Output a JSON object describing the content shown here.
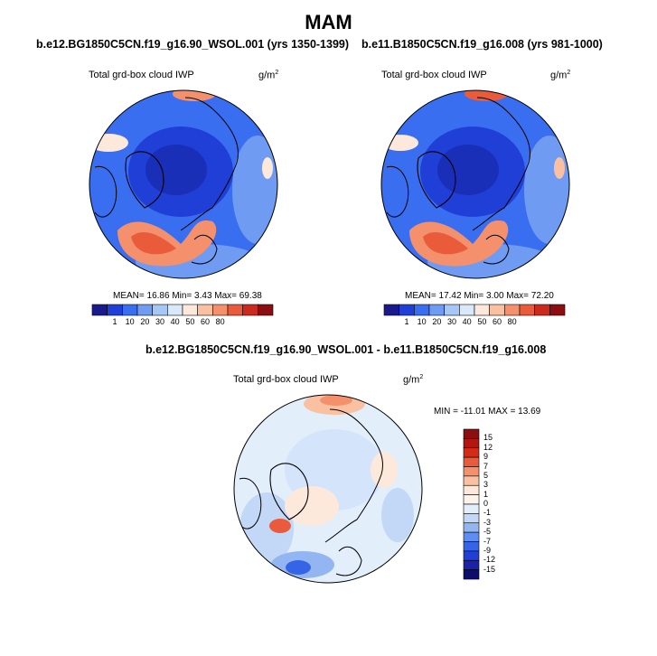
{
  "title": "MAM",
  "units_label": "g/m",
  "units_sup": "2",
  "colors": {
    "land_outline": "#000000",
    "map_border": "#000000"
  },
  "chart_data": [
    {
      "type": "heatmap",
      "projection": "north-polar-stereographic",
      "title": "b.e12.BG1850C5CN.f19_g16.90_WSOL.001 (yrs 1350-1399)",
      "variable": "Total grd-box cloud IWP",
      "units": "g/m2",
      "stats": "MEAN=  16.86  Min=   3.43  Max=  69.38",
      "mean": 16.86,
      "min": 3.43,
      "max": 69.38,
      "colorbar": {
        "orientation": "horizontal",
        "levels": [
          "1",
          "10",
          "20",
          "30",
          "40",
          "50",
          "60",
          "80"
        ],
        "colors": [
          "#1a1a8c",
          "#1f3fd6",
          "#3a6ef0",
          "#6f9bf2",
          "#a6c6f5",
          "#d9e8fb",
          "#fde9dc",
          "#f9c1a1",
          "#f4916c",
          "#ea5b3c",
          "#cc2a1e",
          "#8c0e10"
        ]
      }
    },
    {
      "type": "heatmap",
      "projection": "north-polar-stereographic",
      "title": "b.e11.B1850C5CN.f19_g16.008 (yrs 981-1000)",
      "variable": "Total grd-box cloud IWP",
      "units": "g/m2",
      "stats": "MEAN=  17.42  Min=   3.00  Max=  72.20",
      "mean": 17.42,
      "min": 3.0,
      "max": 72.2,
      "colorbar": {
        "orientation": "horizontal",
        "levels": [
          "1",
          "10",
          "20",
          "30",
          "40",
          "50",
          "60",
          "80"
        ],
        "colors": [
          "#1a1a8c",
          "#1f3fd6",
          "#3a6ef0",
          "#6f9bf2",
          "#a6c6f5",
          "#d9e8fb",
          "#fde9dc",
          "#f9c1a1",
          "#f4916c",
          "#ea5b3c",
          "#cc2a1e",
          "#8c0e10"
        ]
      }
    },
    {
      "type": "heatmap",
      "projection": "north-polar-stereographic",
      "title": "b.e12.BG1850C5CN.f19_g16.90_WSOL.001 - b.e11.B1850C5CN.f19_g16.008",
      "variable": "Total grd-box cloud IWP",
      "units": "g/m2",
      "stats": "MIN = -11.01 MAX =  13.69",
      "min": -11.01,
      "max": 13.69,
      "colorbar": {
        "orientation": "vertical",
        "levels": [
          "15",
          "12",
          "9",
          "7",
          "5",
          "3",
          "1",
          "0",
          "-1",
          "-3",
          "-5",
          "-7",
          "-9",
          "-12",
          "-15"
        ],
        "colors": [
          "#8c0e10",
          "#b3150f",
          "#d42b18",
          "#ea5b3c",
          "#f4916c",
          "#f9c1a1",
          "#fde9dc",
          "#fdf3ec",
          "#e3eefb",
          "#c3d8f7",
          "#93b6f3",
          "#5e8ff0",
          "#3564e6",
          "#1f3fd6",
          "#1a22a8",
          "#0d0d6e"
        ]
      }
    }
  ]
}
